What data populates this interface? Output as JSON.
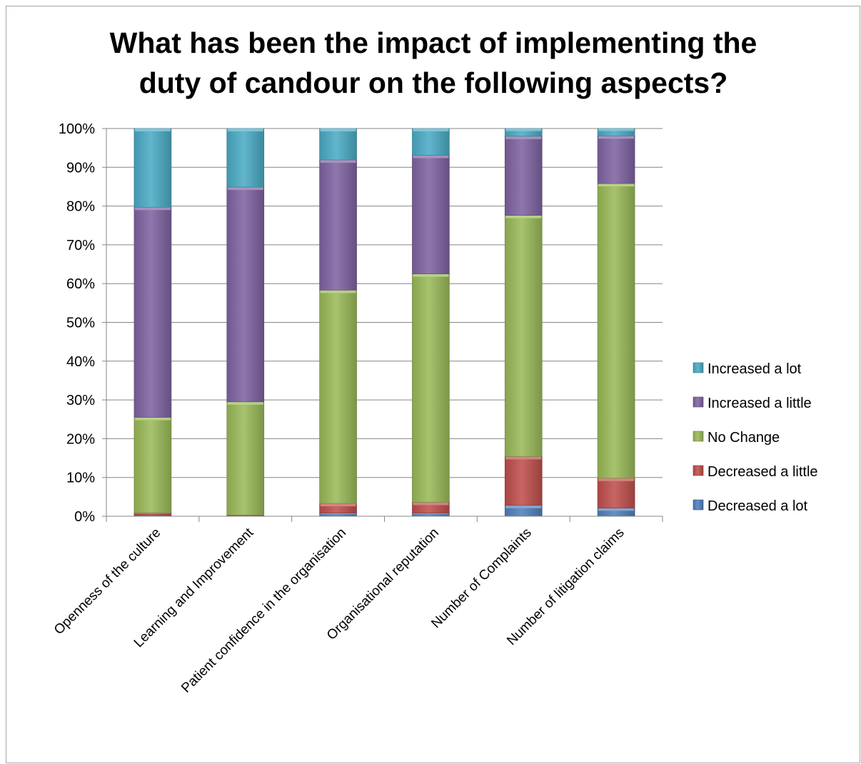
{
  "chart_data": {
    "type": "bar",
    "stacked": true,
    "percent_stacked": true,
    "title": "What has been the impact of implementing the duty of candour on the following aspects?",
    "title_lines": [
      "What has been the impact of implementing the",
      "duty of candour on the following aspects?"
    ],
    "xlabel": "",
    "ylabel": "",
    "ylim": [
      0,
      100
    ],
    "y_ticks": [
      "0%",
      "10%",
      "20%",
      "30%",
      "40%",
      "50%",
      "60%",
      "70%",
      "80%",
      "90%",
      "100%"
    ],
    "grid": true,
    "legend_position": "right",
    "categories": [
      "Openness of the culture",
      "Learning and Improvement",
      "Patient confidence in the organisation",
      "Organisational reputation",
      "Number of Complaints",
      "Number of litigation claims"
    ],
    "series": [
      {
        "name": "Decreased a lot",
        "color": "#4f81bd",
        "values": [
          0.3,
          0,
          0.8,
          0.8,
          2.8,
          2.1
        ]
      },
      {
        "name": "Decreased a little",
        "color": "#c0504d",
        "values": [
          0.6,
          0.3,
          2.5,
          2.8,
          12.6,
          7.7
        ]
      },
      {
        "name": "No Change",
        "color": "#9bbb59",
        "values": [
          24.6,
          29.2,
          55.0,
          58.9,
          62.2,
          76.0
        ]
      },
      {
        "name": "Increased a little",
        "color": "#8064a2",
        "values": [
          54.2,
          55.4,
          33.6,
          30.6,
          20.4,
          12.3
        ]
      },
      {
        "name": "Increased a lot",
        "color": "#4bacc6",
        "values": [
          20.3,
          15.1,
          8.1,
          6.9,
          2.0,
          1.9
        ]
      }
    ],
    "legend_order": [
      "Increased a lot",
      "Increased a little",
      "No Change",
      "Decreased a little",
      "Decreased a lot"
    ]
  }
}
